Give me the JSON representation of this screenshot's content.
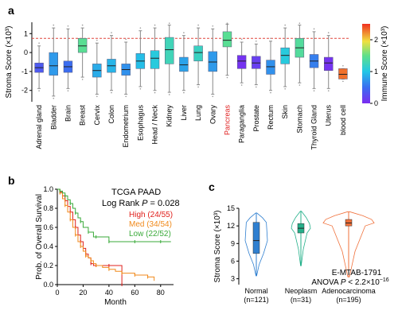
{
  "panels": {
    "a": "a",
    "b": "b",
    "c": "c"
  },
  "colors": {
    "dashed_line": "#e0463c",
    "highlight_text": "#e02020",
    "km_high": "#e0201c",
    "km_med": "#f08a1c",
    "km_low": "#3aaa3a",
    "violin_normal": "#2f7fd0",
    "violin_neoplasm": "#24b08a",
    "violin_adeno": "#f0703a"
  },
  "chart_data": [
    {
      "type": "box",
      "panel": "a",
      "ylabel": "Stroma Score (×10³)",
      "ylim": [
        -2.6,
        1.6
      ],
      "yticks": [
        -2,
        -1,
        0,
        1
      ],
      "reference_line": 0.75,
      "highlight_category": "Pancreas",
      "categories": [
        "Adrenal gland",
        "Bladder",
        "Brain",
        "Breast",
        "Cervix",
        "Colon",
        "Endometrium",
        "Esophagus",
        "Head / Neck",
        "Kidney",
        "Liver",
        "Lung",
        "Ovary",
        "Pancreas",
        "Paraganglia",
        "Prostate",
        "Rectum",
        "Skin",
        "Stomach",
        "Thyroid Gland",
        "Uterus",
        "blood cell"
      ],
      "boxes": [
        {
          "q1": -1.05,
          "median": -0.8,
          "q3": -0.55,
          "wlo": -1.9,
          "whi": 0.35,
          "immune": 0.35
        },
        {
          "q1": -1.2,
          "median": -0.7,
          "q3": 0.0,
          "wlo": -2.3,
          "whi": 1.3,
          "immune": 0.75
        },
        {
          "q1": -1.05,
          "median": -0.75,
          "q3": -0.45,
          "wlo": -1.9,
          "whi": 1.25,
          "immune": 0.5
        },
        {
          "q1": 0.0,
          "median": 0.35,
          "q3": 0.75,
          "wlo": -1.3,
          "whi": 1.3,
          "immune": 1.45
        },
        {
          "q1": -1.3,
          "median": -0.95,
          "q3": -0.6,
          "wlo": -2.2,
          "whi": 0.5,
          "immune": 0.85
        },
        {
          "q1": -1.05,
          "median": -0.7,
          "q3": -0.35,
          "wlo": -2.0,
          "whi": 0.9,
          "immune": 0.9
        },
        {
          "q1": -1.2,
          "median": -0.9,
          "q3": -0.6,
          "wlo": -2.2,
          "whi": 0.55,
          "immune": 0.7
        },
        {
          "q1": -0.85,
          "median": -0.45,
          "q3": -0.05,
          "wlo": -1.8,
          "whi": 1.15,
          "immune": 0.95
        },
        {
          "q1": -0.85,
          "median": -0.3,
          "q3": 0.1,
          "wlo": -2.0,
          "whi": 1.3,
          "immune": 1.05
        },
        {
          "q1": -0.6,
          "median": 0.15,
          "q3": 0.8,
          "wlo": -2.1,
          "whi": 1.45,
          "immune": 1.25
        },
        {
          "q1": -1.0,
          "median": -0.65,
          "q3": -0.25,
          "wlo": -2.0,
          "whi": 0.9,
          "immune": 0.8
        },
        {
          "q1": -0.45,
          "median": 0.0,
          "q3": 0.35,
          "wlo": -1.7,
          "whi": 1.3,
          "immune": 1.2
        },
        {
          "q1": -1.0,
          "median": -0.5,
          "q3": 0.05,
          "wlo": -2.2,
          "whi": 1.25,
          "immune": 0.75
        },
        {
          "q1": 0.3,
          "median": 0.65,
          "q3": 1.1,
          "wlo": -1.2,
          "whi": 1.5,
          "immune": 1.45
        },
        {
          "q1": -0.85,
          "median": -0.45,
          "q3": -0.15,
          "wlo": -1.6,
          "whi": 0.55,
          "immune": 0.05
        },
        {
          "q1": -0.85,
          "median": -0.55,
          "q3": -0.2,
          "wlo": -1.7,
          "whi": 0.45,
          "immune": 0.15
        },
        {
          "q1": -1.15,
          "median": -0.75,
          "q3": -0.4,
          "wlo": -2.0,
          "whi": 0.6,
          "immune": 0.7
        },
        {
          "q1": -0.6,
          "median": -0.15,
          "q3": 0.25,
          "wlo": -1.8,
          "whi": 1.3,
          "immune": 1.05
        },
        {
          "q1": -0.25,
          "median": 0.25,
          "q3": 0.75,
          "wlo": -1.6,
          "whi": 1.45,
          "immune": 1.4
        },
        {
          "q1": -0.8,
          "median": -0.45,
          "q3": -0.1,
          "wlo": -1.9,
          "whi": 1.1,
          "immune": 0.6
        },
        {
          "q1": -0.95,
          "median": -0.55,
          "q3": -0.25,
          "wlo": -1.9,
          "whi": 0.9,
          "immune": 0.05
        },
        {
          "q1": -1.4,
          "median": -1.15,
          "q3": -0.85,
          "wlo": -1.4,
          "whi": -0.85,
          "immune": 2.3
        }
      ],
      "colorbar": {
        "label": "Immune Score (×10³)",
        "range": [
          0,
          2.5
        ],
        "ticks": [
          0,
          1,
          2
        ]
      }
    },
    {
      "type": "line",
      "panel": "b",
      "title": "TCGA PAAD",
      "stat_text": "Log Rank P = 0.028",
      "stat_prefix": "Log Rank ",
      "stat_p": "P",
      "stat_value": " = 0.028",
      "xlabel": "Month",
      "ylabel": "Prob. of Overall Survival",
      "xlim": [
        0,
        90
      ],
      "ylim": [
        0,
        1.0
      ],
      "xticks": [
        0,
        20,
        40,
        60,
        80
      ],
      "yticks": [
        0.0,
        0.2,
        0.4,
        0.6,
        0.8,
        1.0
      ],
      "series": [
        {
          "name": "High (24/55)",
          "color": "#e0201c",
          "x": [
            0,
            2,
            4,
            6,
            8,
            10,
            12,
            14,
            16,
            18,
            20,
            22,
            24,
            26,
            28,
            30,
            35,
            40,
            45,
            50
          ],
          "y": [
            1.0,
            0.97,
            0.93,
            0.88,
            0.82,
            0.76,
            0.68,
            0.6,
            0.52,
            0.45,
            0.38,
            0.32,
            0.28,
            0.22,
            0.2,
            0.2,
            0.2,
            0.2,
            0.2,
            0.0
          ]
        },
        {
          "name": "Med (34/54)",
          "color": "#f08a1c",
          "x": [
            0,
            2,
            4,
            6,
            8,
            10,
            12,
            14,
            16,
            18,
            20,
            22,
            24,
            26,
            28,
            30,
            35,
            40,
            45,
            50,
            55,
            60,
            65,
            70,
            75
          ],
          "y": [
            1.0,
            0.96,
            0.9,
            0.83,
            0.76,
            0.68,
            0.6,
            0.52,
            0.45,
            0.4,
            0.35,
            0.3,
            0.28,
            0.25,
            0.22,
            0.2,
            0.18,
            0.16,
            0.14,
            0.12,
            0.12,
            0.1,
            0.1,
            0.08,
            0.04
          ]
        },
        {
          "name": "Low (22/52)",
          "color": "#3aaa3a",
          "x": [
            0,
            2,
            4,
            6,
            8,
            10,
            12,
            14,
            16,
            18,
            20,
            24,
            28,
            30,
            35,
            40,
            50,
            60,
            70,
            80,
            88
          ],
          "y": [
            1.0,
            0.98,
            0.96,
            0.93,
            0.89,
            0.85,
            0.8,
            0.75,
            0.7,
            0.66,
            0.6,
            0.55,
            0.5,
            0.5,
            0.5,
            0.45,
            0.45,
            0.45,
            0.45,
            0.45,
            0.45
          ]
        }
      ]
    },
    {
      "type": "violin",
      "panel": "c",
      "ylabel": "Stroma Score (×10³)",
      "ylim": [
        2,
        15
      ],
      "yticks": [
        3,
        6,
        9,
        12,
        15
      ],
      "annotation_dataset": "E-MTAB-1791",
      "annotation_stat": "ANOVA P < 2.2×10⁻¹⁶",
      "anova_prefix": "ANOVA ",
      "anova_p": "P",
      "anova_value": " < 2.2×10",
      "anova_exp": "−16",
      "groups": [
        {
          "name": "Normal",
          "n": "(n=121)",
          "color": "#2f7fd0",
          "min": 3.5,
          "q1": 7.3,
          "median": 9.5,
          "q3": 12.6,
          "max": 14.2
        },
        {
          "name": "Neoplasm",
          "n": "(n=31)",
          "color": "#24b08a",
          "min": 5.2,
          "q1": 10.8,
          "median": 11.6,
          "q3": 12.4,
          "max": 14.5
        },
        {
          "name": "Adenocarcinoma",
          "n": "(n=195)",
          "color": "#f0703a",
          "min": 3.3,
          "q1": 12.0,
          "median": 12.5,
          "q3": 13.1,
          "max": 14.4
        }
      ]
    }
  ]
}
